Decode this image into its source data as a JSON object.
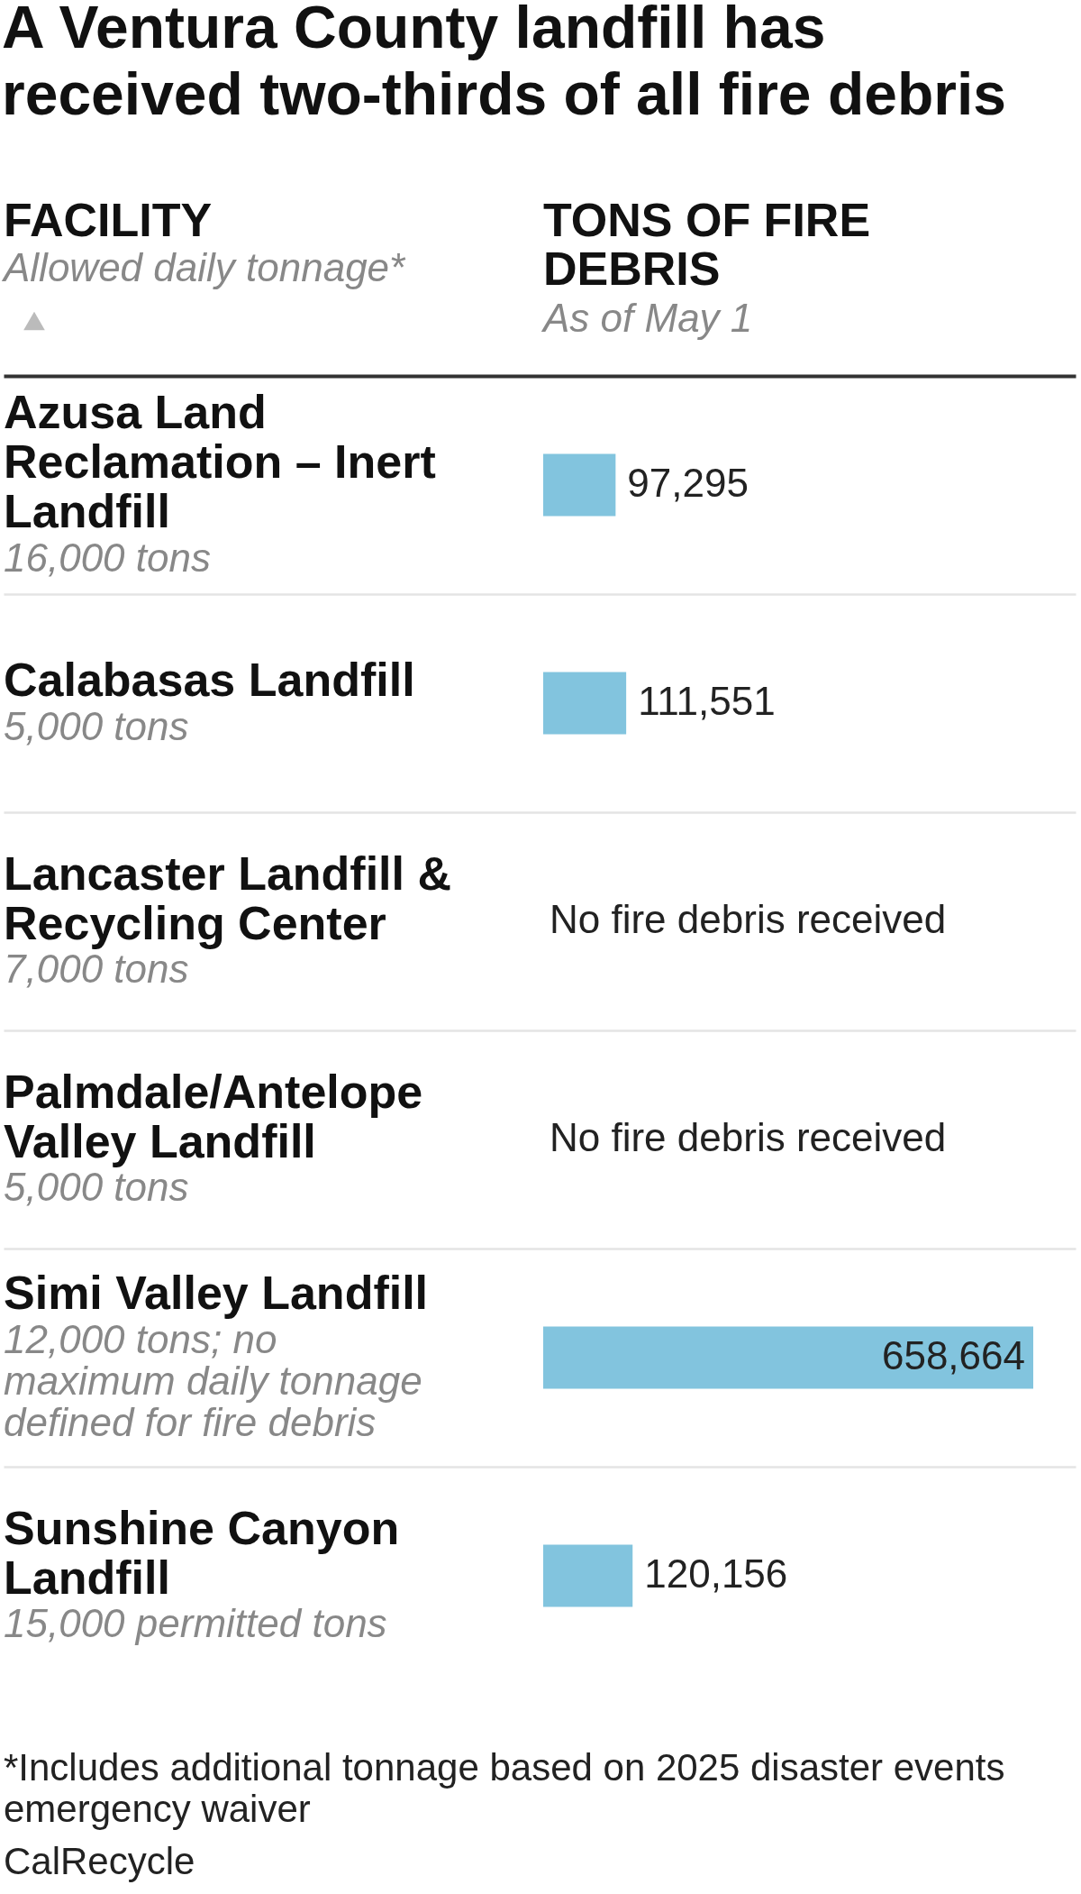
{
  "chart_data": {
    "type": "bar",
    "orientation": "horizontal",
    "title": "A Ventura County landfill has received two-thirds of all fire debris",
    "ylabel": "FACILITY",
    "xlabel": "TONS OF FIRE DEBRIS",
    "categories": [
      "Azusa Land Reclamation – Inert Landfill",
      "Calabasas Landfill",
      "Lancaster Landfill & Recycling Center",
      "Palmdale/Antelope Valley Landfill",
      "Simi Valley Landfill",
      "Sunshine Canyon Landfill"
    ],
    "values": [
      97295,
      111551,
      null,
      null,
      658664,
      120156
    ],
    "value_labels": [
      "97,295",
      "111,551",
      "No fire debris received",
      "No fire debris received",
      "658,664",
      "120,156"
    ],
    "color": "#82c4de",
    "grid": "y",
    "tick_labels": "y",
    "annotations": [
      "Allowed daily tonnage*",
      "As of May 1",
      "16,000 tons",
      "5,000 tons",
      "7,000 tons",
      "5,000 tons",
      "12,000 tons; no maximum daily tonnage defined for fire debris",
      "15,000 permitted tons",
      "*Includes additional tonnage based on 2025 disaster events emergency waiver",
      "CalRecycle"
    ]
  }
}
